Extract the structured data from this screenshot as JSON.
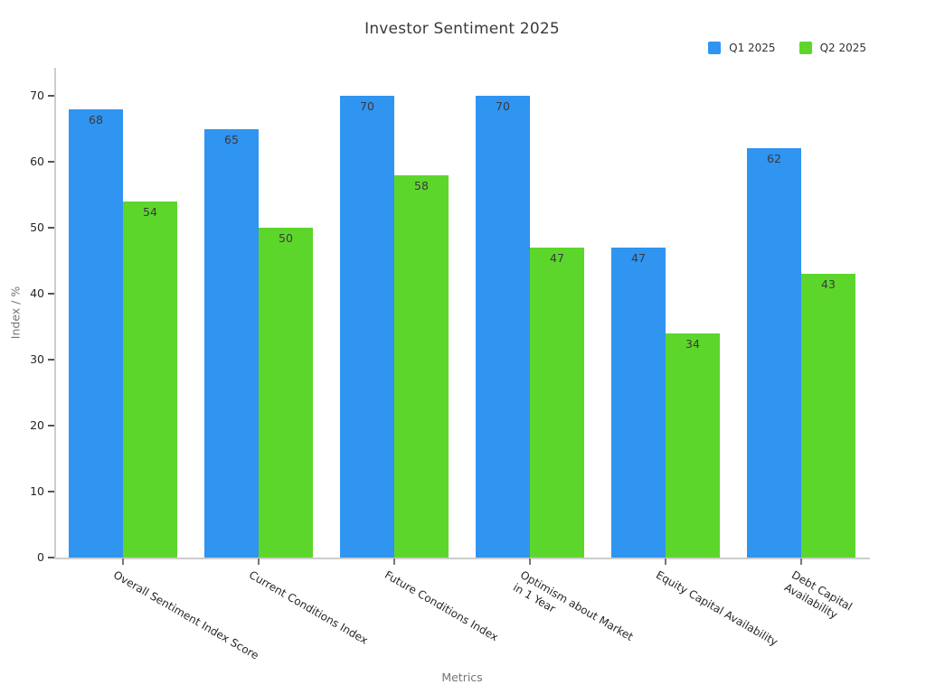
{
  "chart_data": {
    "type": "bar",
    "title": "Investor Sentiment 2025",
    "xlabel": "Metrics",
    "ylabel": "Index / %",
    "categories": [
      "Overall Sentiment Index Score",
      "Current Conditions Index",
      "Future Conditions Index",
      "Optimism about Market\nin 1 Year",
      "Equity Capital Availability",
      "Debt Capital Availability"
    ],
    "series": [
      {
        "name": "Q1 2025",
        "color": "#3094F1",
        "values": [
          68,
          65,
          70,
          70,
          47,
          62
        ]
      },
      {
        "name": "Q2 2025",
        "color": "#5DD62C",
        "values": [
          54,
          50,
          58,
          47,
          34,
          43
        ]
      }
    ],
    "ylim": [
      0,
      70
    ],
    "yticks": [
      0,
      10,
      20,
      30,
      40,
      50,
      60,
      70
    ],
    "grid": false,
    "legend_position": "top-right",
    "bar_value_labels": true
  }
}
